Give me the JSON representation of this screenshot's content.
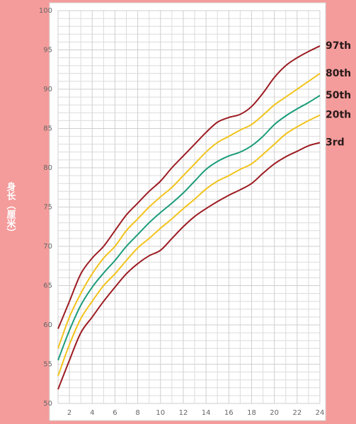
{
  "chart_data": {
    "type": "line",
    "y_label": "身长（厘米）",
    "x": [
      1,
      2,
      3,
      4,
      5,
      6,
      7,
      8,
      9,
      10,
      11,
      12,
      13,
      14,
      15,
      16,
      17,
      18,
      19,
      20,
      21,
      22,
      23,
      24
    ],
    "xlim": [
      1,
      24
    ],
    "xticks": [
      2,
      4,
      6,
      8,
      10,
      12,
      14,
      16,
      18,
      20,
      22,
      24
    ],
    "ylim": [
      50,
      100
    ],
    "yticks": [
      50,
      55,
      60,
      65,
      70,
      75,
      80,
      85,
      90,
      95,
      100
    ],
    "grid": true,
    "series": [
      {
        "name": "97th",
        "color": "#9c1c22",
        "values": [
          59.5,
          63,
          66.5,
          68.5,
          70,
          72,
          74,
          75.5,
          77,
          78.3,
          80,
          81.5,
          83,
          84.5,
          85.8,
          86.4,
          86.8,
          87.8,
          89.5,
          91.5,
          93,
          94,
          94.8,
          95.5
        ]
      },
      {
        "name": "80th",
        "color": "#f2c31c",
        "values": [
          57,
          61,
          64,
          66.5,
          68.5,
          70,
          72,
          73.5,
          75,
          76.3,
          77.5,
          79,
          80.5,
          82,
          83.2,
          84,
          84.8,
          85.5,
          86.7,
          88,
          89,
          90,
          91,
          92
        ]
      },
      {
        "name": "50th",
        "color": "#1b9c7a",
        "values": [
          55.5,
          59.3,
          62.5,
          64.8,
          66.6,
          68.2,
          70,
          71.5,
          73,
          74.3,
          75.5,
          76.8,
          78.3,
          79.8,
          80.8,
          81.5,
          82,
          82.8,
          84,
          85.5,
          86.6,
          87.5,
          88.3,
          89.2
        ]
      },
      {
        "name": "20th",
        "color": "#f2c31c",
        "values": [
          53.5,
          57.5,
          60.8,
          63,
          65,
          66.5,
          68.2,
          69.8,
          71,
          72.3,
          73.5,
          74.8,
          76,
          77.3,
          78.3,
          79,
          79.8,
          80.5,
          81.7,
          83,
          84.3,
          85.2,
          86,
          86.7
        ]
      },
      {
        "name": "3rd",
        "color": "#9c1c22",
        "values": [
          51.8,
          55.5,
          59,
          61,
          63,
          64.8,
          66.5,
          67.8,
          68.8,
          69.5,
          71,
          72.5,
          73.8,
          74.8,
          75.7,
          76.5,
          77.2,
          78,
          79.3,
          80.5,
          81.4,
          82.1,
          82.8,
          83.2
        ]
      }
    ]
  }
}
